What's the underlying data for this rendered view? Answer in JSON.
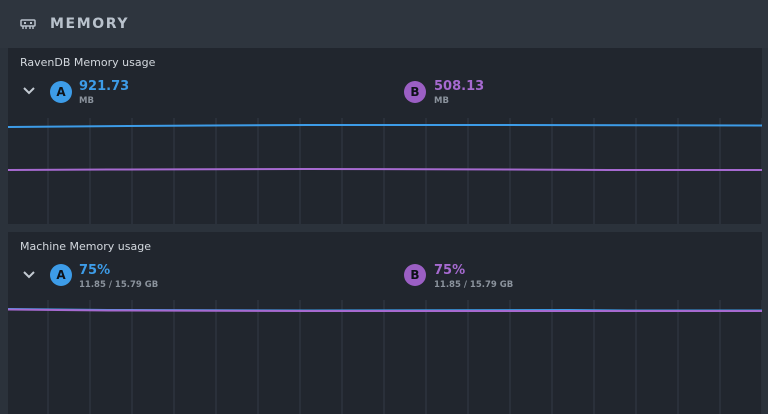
{
  "header": {
    "title": "MEMORY",
    "icon": "memory-chip-icon"
  },
  "panels": [
    {
      "title": "RavenDB Memory usage",
      "a": {
        "badge": "A",
        "value": "921.73",
        "unit": "MB",
        "color": "#3d9ce8"
      },
      "b": {
        "badge": "B",
        "value": "508.13",
        "unit": "MB",
        "color": "#a66ad0"
      }
    },
    {
      "title": "Machine Memory usage",
      "a": {
        "badge": "A",
        "value": "75%",
        "unit": "11.85 / 15.79 GB",
        "color": "#3d9ce8"
      },
      "b": {
        "badge": "B",
        "value": "75%",
        "unit": "11.85 / 15.79 GB",
        "color": "#a66ad0"
      }
    }
  ]
}
